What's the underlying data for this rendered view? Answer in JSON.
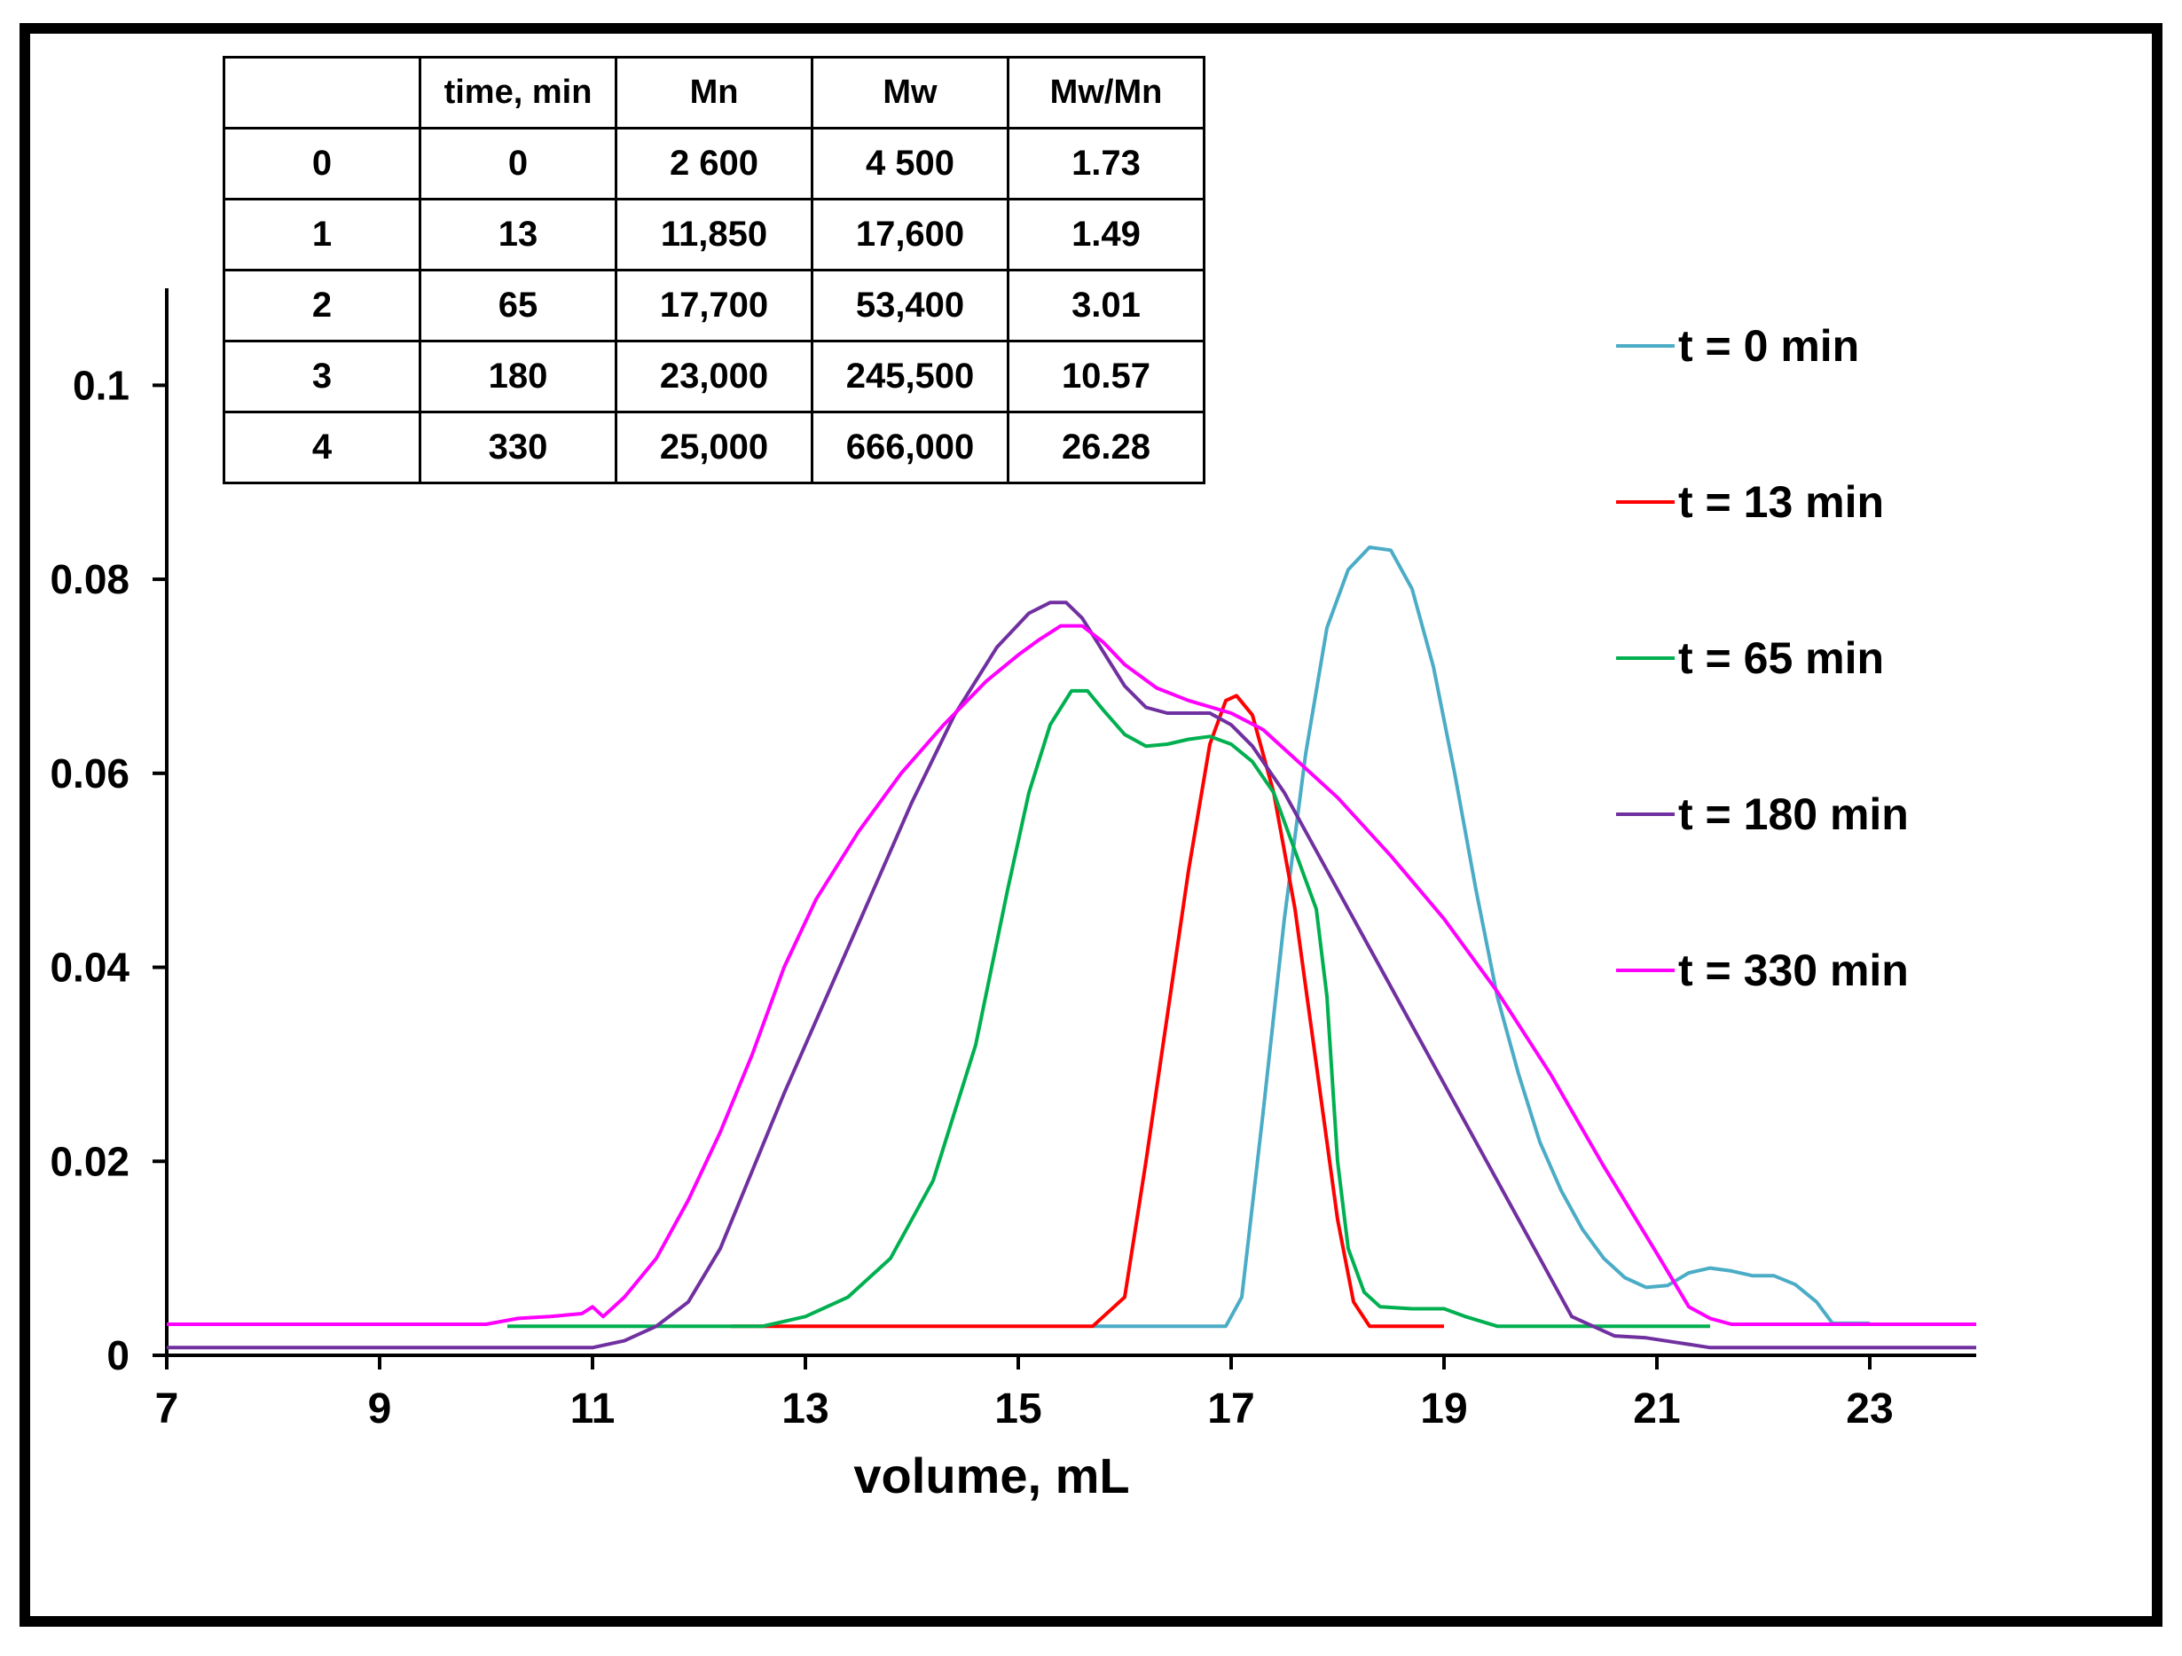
{
  "chart_data": {
    "type": "line",
    "title": "",
    "xlabel": "volume, mL",
    "ylabel": "",
    "xlim": [
      7,
      24
    ],
    "ylim": [
      0,
      0.11
    ],
    "xticks": [
      7,
      9,
      11,
      13,
      15,
      17,
      19,
      21,
      23
    ],
    "xtick_labels": [
      "7",
      "9",
      "11",
      "13",
      "15",
      "17",
      "19",
      "21",
      "23"
    ],
    "yticks": [
      0,
      0.02,
      0.04,
      0.06,
      0.08,
      0.1
    ],
    "ytick_labels": [
      "0",
      "0.02",
      "0.04",
      "0.06",
      "0.08",
      "0.1"
    ],
    "legend_position": "right",
    "series": [
      {
        "name": "t = 0 min",
        "color": "#4BACC6",
        "points": [
          [
            15.7,
            0.003
          ],
          [
            16.95,
            0.003
          ],
          [
            17.1,
            0.006
          ],
          [
            17.3,
            0.025
          ],
          [
            17.5,
            0.045
          ],
          [
            17.7,
            0.062
          ],
          [
            17.9,
            0.075
          ],
          [
            18.1,
            0.081
          ],
          [
            18.3,
            0.0833
          ],
          [
            18.5,
            0.083
          ],
          [
            18.7,
            0.079
          ],
          [
            18.9,
            0.071
          ],
          [
            19.1,
            0.06
          ],
          [
            19.3,
            0.048
          ],
          [
            19.5,
            0.037
          ],
          [
            19.7,
            0.029
          ],
          [
            19.9,
            0.022
          ],
          [
            20.1,
            0.017
          ],
          [
            20.3,
            0.013
          ],
          [
            20.5,
            0.01
          ],
          [
            20.7,
            0.008
          ],
          [
            20.9,
            0.007
          ],
          [
            21.1,
            0.0072
          ],
          [
            21.3,
            0.0085
          ],
          [
            21.5,
            0.009
          ],
          [
            21.7,
            0.0087
          ],
          [
            21.9,
            0.0082
          ],
          [
            22.1,
            0.0082
          ],
          [
            22.3,
            0.0073
          ],
          [
            22.5,
            0.0055
          ],
          [
            22.65,
            0.0033
          ],
          [
            23.0,
            0.0033
          ]
        ]
      },
      {
        "name": "t = 13 min",
        "color": "#FF0000",
        "points": [
          [
            12.3,
            0.003
          ],
          [
            15.7,
            0.003
          ],
          [
            15.9,
            0.005
          ],
          [
            16.0,
            0.006
          ],
          [
            16.2,
            0.02
          ],
          [
            16.4,
            0.035
          ],
          [
            16.6,
            0.05
          ],
          [
            16.8,
            0.063
          ],
          [
            16.95,
            0.0675
          ],
          [
            17.05,
            0.068
          ],
          [
            17.2,
            0.066
          ],
          [
            17.4,
            0.058
          ],
          [
            17.6,
            0.046
          ],
          [
            17.8,
            0.03
          ],
          [
            18.0,
            0.014
          ],
          [
            18.15,
            0.0055
          ],
          [
            18.3,
            0.003
          ],
          [
            19.0,
            0.003
          ]
        ]
      },
      {
        "name": "t = 65 min",
        "color": "#00B050",
        "points": [
          [
            10.2,
            0.003
          ],
          [
            12.6,
            0.003
          ],
          [
            13.0,
            0.004
          ],
          [
            13.4,
            0.006
          ],
          [
            13.8,
            0.01
          ],
          [
            14.2,
            0.018
          ],
          [
            14.6,
            0.032
          ],
          [
            14.9,
            0.048
          ],
          [
            15.1,
            0.058
          ],
          [
            15.3,
            0.065
          ],
          [
            15.5,
            0.0685
          ],
          [
            15.65,
            0.0685
          ],
          [
            15.8,
            0.0665
          ],
          [
            16.0,
            0.064
          ],
          [
            16.2,
            0.0628
          ],
          [
            16.4,
            0.063
          ],
          [
            16.6,
            0.0635
          ],
          [
            16.8,
            0.0638
          ],
          [
            17.0,
            0.063
          ],
          [
            17.2,
            0.0612
          ],
          [
            17.4,
            0.058
          ],
          [
            17.6,
            0.052
          ],
          [
            17.8,
            0.046
          ],
          [
            17.9,
            0.037
          ],
          [
            18.0,
            0.02
          ],
          [
            18.1,
            0.011
          ],
          [
            18.25,
            0.0065
          ],
          [
            18.4,
            0.005
          ],
          [
            18.7,
            0.0048
          ],
          [
            19.0,
            0.0048
          ],
          [
            19.2,
            0.004
          ],
          [
            19.5,
            0.003
          ],
          [
            21.5,
            0.003
          ]
        ]
      },
      {
        "name": "t = 180 min",
        "color": "#7030A0",
        "points": [
          [
            7.0,
            0.0008
          ],
          [
            11.0,
            0.0008
          ],
          [
            11.3,
            0.0015
          ],
          [
            11.6,
            0.003
          ],
          [
            11.9,
            0.0055
          ],
          [
            12.2,
            0.011
          ],
          [
            12.5,
            0.019
          ],
          [
            12.8,
            0.027
          ],
          [
            13.2,
            0.037
          ],
          [
            13.6,
            0.047
          ],
          [
            14.0,
            0.057
          ],
          [
            14.4,
            0.066
          ],
          [
            14.8,
            0.073
          ],
          [
            15.1,
            0.0765
          ],
          [
            15.3,
            0.0776
          ],
          [
            15.45,
            0.0776
          ],
          [
            15.6,
            0.076
          ],
          [
            15.8,
            0.0725
          ],
          [
            16.0,
            0.069
          ],
          [
            16.2,
            0.0668
          ],
          [
            16.4,
            0.0662
          ],
          [
            16.6,
            0.0662
          ],
          [
            16.8,
            0.0662
          ],
          [
            17.0,
            0.065
          ],
          [
            17.2,
            0.0628
          ],
          [
            17.5,
            0.058
          ],
          [
            17.8,
            0.052
          ],
          [
            18.1,
            0.046
          ],
          [
            18.4,
            0.04
          ],
          [
            18.7,
            0.034
          ],
          [
            19.0,
            0.028
          ],
          [
            19.3,
            0.022
          ],
          [
            19.6,
            0.016
          ],
          [
            19.9,
            0.01
          ],
          [
            20.1,
            0.006
          ],
          [
            20.2,
            0.004
          ],
          [
            20.4,
            0.003
          ],
          [
            20.6,
            0.002
          ],
          [
            20.9,
            0.0018
          ],
          [
            21.2,
            0.0013
          ],
          [
            21.5,
            0.0008
          ],
          [
            24.0,
            0.0008
          ]
        ]
      },
      {
        "name": "t = 330 min",
        "color": "#FF00FF",
        "points": [
          [
            7.0,
            0.0032
          ],
          [
            10.0,
            0.0032
          ],
          [
            10.3,
            0.0038
          ],
          [
            10.6,
            0.004
          ],
          [
            10.9,
            0.0043
          ],
          [
            11.0,
            0.005
          ],
          [
            11.1,
            0.004
          ],
          [
            11.3,
            0.006
          ],
          [
            11.6,
            0.01
          ],
          [
            11.9,
            0.016
          ],
          [
            12.2,
            0.023
          ],
          [
            12.5,
            0.031
          ],
          [
            12.8,
            0.04
          ],
          [
            13.1,
            0.047
          ],
          [
            13.5,
            0.054
          ],
          [
            13.9,
            0.06
          ],
          [
            14.3,
            0.065
          ],
          [
            14.7,
            0.0695
          ],
          [
            15.0,
            0.0722
          ],
          [
            15.2,
            0.0738
          ],
          [
            15.4,
            0.0752
          ],
          [
            15.6,
            0.0752
          ],
          [
            15.8,
            0.0735
          ],
          [
            16.0,
            0.0712
          ],
          [
            16.3,
            0.0688
          ],
          [
            16.6,
            0.0675
          ],
          [
            17.0,
            0.0662
          ],
          [
            17.3,
            0.0645
          ],
          [
            17.6,
            0.0615
          ],
          [
            18.0,
            0.0575
          ],
          [
            18.5,
            0.0515
          ],
          [
            19.0,
            0.045
          ],
          [
            19.5,
            0.0375
          ],
          [
            20.0,
            0.029
          ],
          [
            20.5,
            0.0195
          ],
          [
            21.0,
            0.0105
          ],
          [
            21.3,
            0.005
          ],
          [
            21.5,
            0.0038
          ],
          [
            21.7,
            0.0032
          ],
          [
            24.0,
            0.0032
          ]
        ]
      }
    ]
  },
  "table": {
    "headers": [
      "",
      "time, min",
      "Mn",
      "Mw",
      "Mw/Mn"
    ],
    "rows": [
      [
        "0",
        "0",
        "2 600",
        "4 500",
        "1.73"
      ],
      [
        "1",
        "13",
        "11,850",
        "17,600",
        "1.49"
      ],
      [
        "2",
        "65",
        "17,700",
        "53,400",
        "3.01"
      ],
      [
        "3",
        "180",
        "23,000",
        "245,500",
        "10.57"
      ],
      [
        "4",
        "330",
        "25,000",
        "666,000",
        "26.28"
      ]
    ]
  }
}
